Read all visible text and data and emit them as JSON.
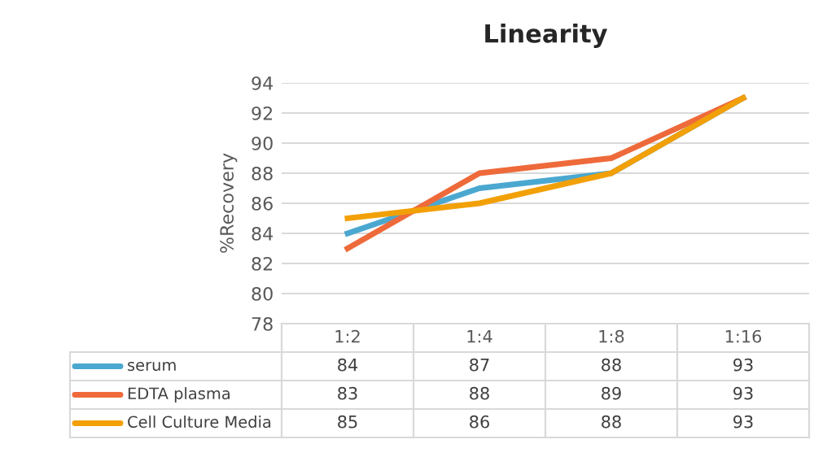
{
  "chart_data": {
    "type": "line",
    "title": "Linearity",
    "ylabel": "%Recovery",
    "categories": [
      "1:2",
      "1:4",
      "1:8",
      "1:16"
    ],
    "series": [
      {
        "name": "serum",
        "color": "#4aa8d0",
        "values": [
          84,
          87,
          88,
          93
        ]
      },
      {
        "name": "EDTA plasma",
        "color": "#ee6a3a",
        "values": [
          83,
          88,
          89,
          93
        ]
      },
      {
        "name": "Cell Culture Media",
        "color": "#f2a007",
        "values": [
          85,
          86,
          88,
          93
        ]
      }
    ],
    "ylim": [
      78,
      94
    ],
    "yticks": [
      78,
      80,
      82,
      84,
      86,
      88,
      90,
      92,
      94
    ],
    "grid": "y",
    "legend": "bottom",
    "data_labels": true,
    "marker": "none",
    "line_style": "solid"
  }
}
